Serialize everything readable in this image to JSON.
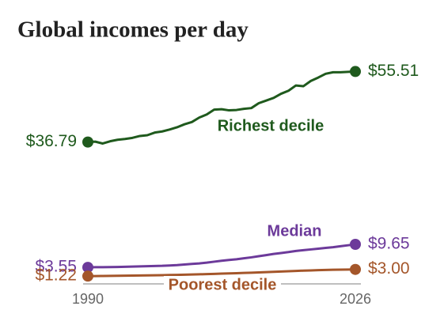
{
  "chart_data": {
    "type": "line",
    "title": "Global incomes per day",
    "x": [
      1990,
      1991,
      1992,
      1993,
      1994,
      1995,
      1996,
      1997,
      1998,
      1999,
      2000,
      2001,
      2002,
      2003,
      2004,
      2005,
      2006,
      2007,
      2008,
      2009,
      2010,
      2011,
      2012,
      2013,
      2014,
      2015,
      2016,
      2017,
      2018,
      2019,
      2020,
      2021,
      2022,
      2023,
      2024,
      2025,
      2026
    ],
    "xlim": [
      1990,
      2026
    ],
    "xticks": [
      1990,
      2026
    ],
    "ylim": [
      0,
      60
    ],
    "series": [
      {
        "name": "Richest decile",
        "color": "#1f5a1d",
        "values": [
          36.79,
          36.9,
          36.4,
          37.0,
          37.4,
          37.6,
          37.9,
          38.4,
          38.6,
          39.3,
          39.6,
          40.1,
          40.7,
          41.5,
          42.1,
          43.3,
          44.1,
          45.4,
          45.5,
          45.2,
          45.3,
          45.6,
          45.8,
          47.1,
          47.8,
          48.5,
          49.6,
          50.4,
          51.8,
          51.6,
          53.0,
          53.9,
          54.9,
          55.3,
          55.3,
          55.4,
          55.51
        ],
        "value_labels": [
          "$36.79",
          null,
          null,
          null,
          null,
          null,
          null,
          null,
          null,
          null,
          null,
          null,
          null,
          null,
          null,
          null,
          null,
          null,
          null,
          null,
          null,
          null,
          null,
          null,
          null,
          null,
          null,
          null,
          null,
          null,
          null,
          null,
          null,
          null,
          null,
          null,
          "$55.51"
        ]
      },
      {
        "name": "Median",
        "color": "#6c3a9a",
        "values": [
          3.55,
          3.58,
          3.6,
          3.62,
          3.65,
          3.7,
          3.75,
          3.8,
          3.85,
          3.9,
          3.95,
          4.05,
          4.15,
          4.3,
          4.45,
          4.6,
          4.8,
          5.05,
          5.3,
          5.5,
          5.7,
          5.95,
          6.2,
          6.5,
          6.8,
          7.1,
          7.35,
          7.6,
          7.9,
          8.1,
          8.3,
          8.5,
          8.7,
          8.9,
          9.15,
          9.4,
          9.65
        ],
        "value_labels": [
          "$3.55",
          null,
          null,
          null,
          null,
          null,
          null,
          null,
          null,
          null,
          null,
          null,
          null,
          null,
          null,
          null,
          null,
          null,
          null,
          null,
          null,
          null,
          null,
          null,
          null,
          null,
          null,
          null,
          null,
          null,
          null,
          null,
          null,
          null,
          null,
          null,
          "$9.65"
        ]
      },
      {
        "name": "Poorest decile",
        "color": "#a4562a",
        "values": [
          1.22,
          1.24,
          1.26,
          1.28,
          1.3,
          1.33,
          1.36,
          1.39,
          1.42,
          1.45,
          1.48,
          1.52,
          1.56,
          1.6,
          1.65,
          1.7,
          1.76,
          1.82,
          1.88,
          1.94,
          2.0,
          2.06,
          2.12,
          2.2,
          2.28,
          2.36,
          2.44,
          2.52,
          2.6,
          2.68,
          2.74,
          2.8,
          2.85,
          2.9,
          2.94,
          2.97,
          3.0
        ],
        "value_labels": [
          "$1.22",
          null,
          null,
          null,
          null,
          null,
          null,
          null,
          null,
          null,
          null,
          null,
          null,
          null,
          null,
          null,
          null,
          null,
          null,
          null,
          null,
          null,
          null,
          null,
          null,
          null,
          null,
          null,
          null,
          null,
          null,
          null,
          null,
          null,
          null,
          null,
          "$3.00"
        ]
      }
    ]
  }
}
